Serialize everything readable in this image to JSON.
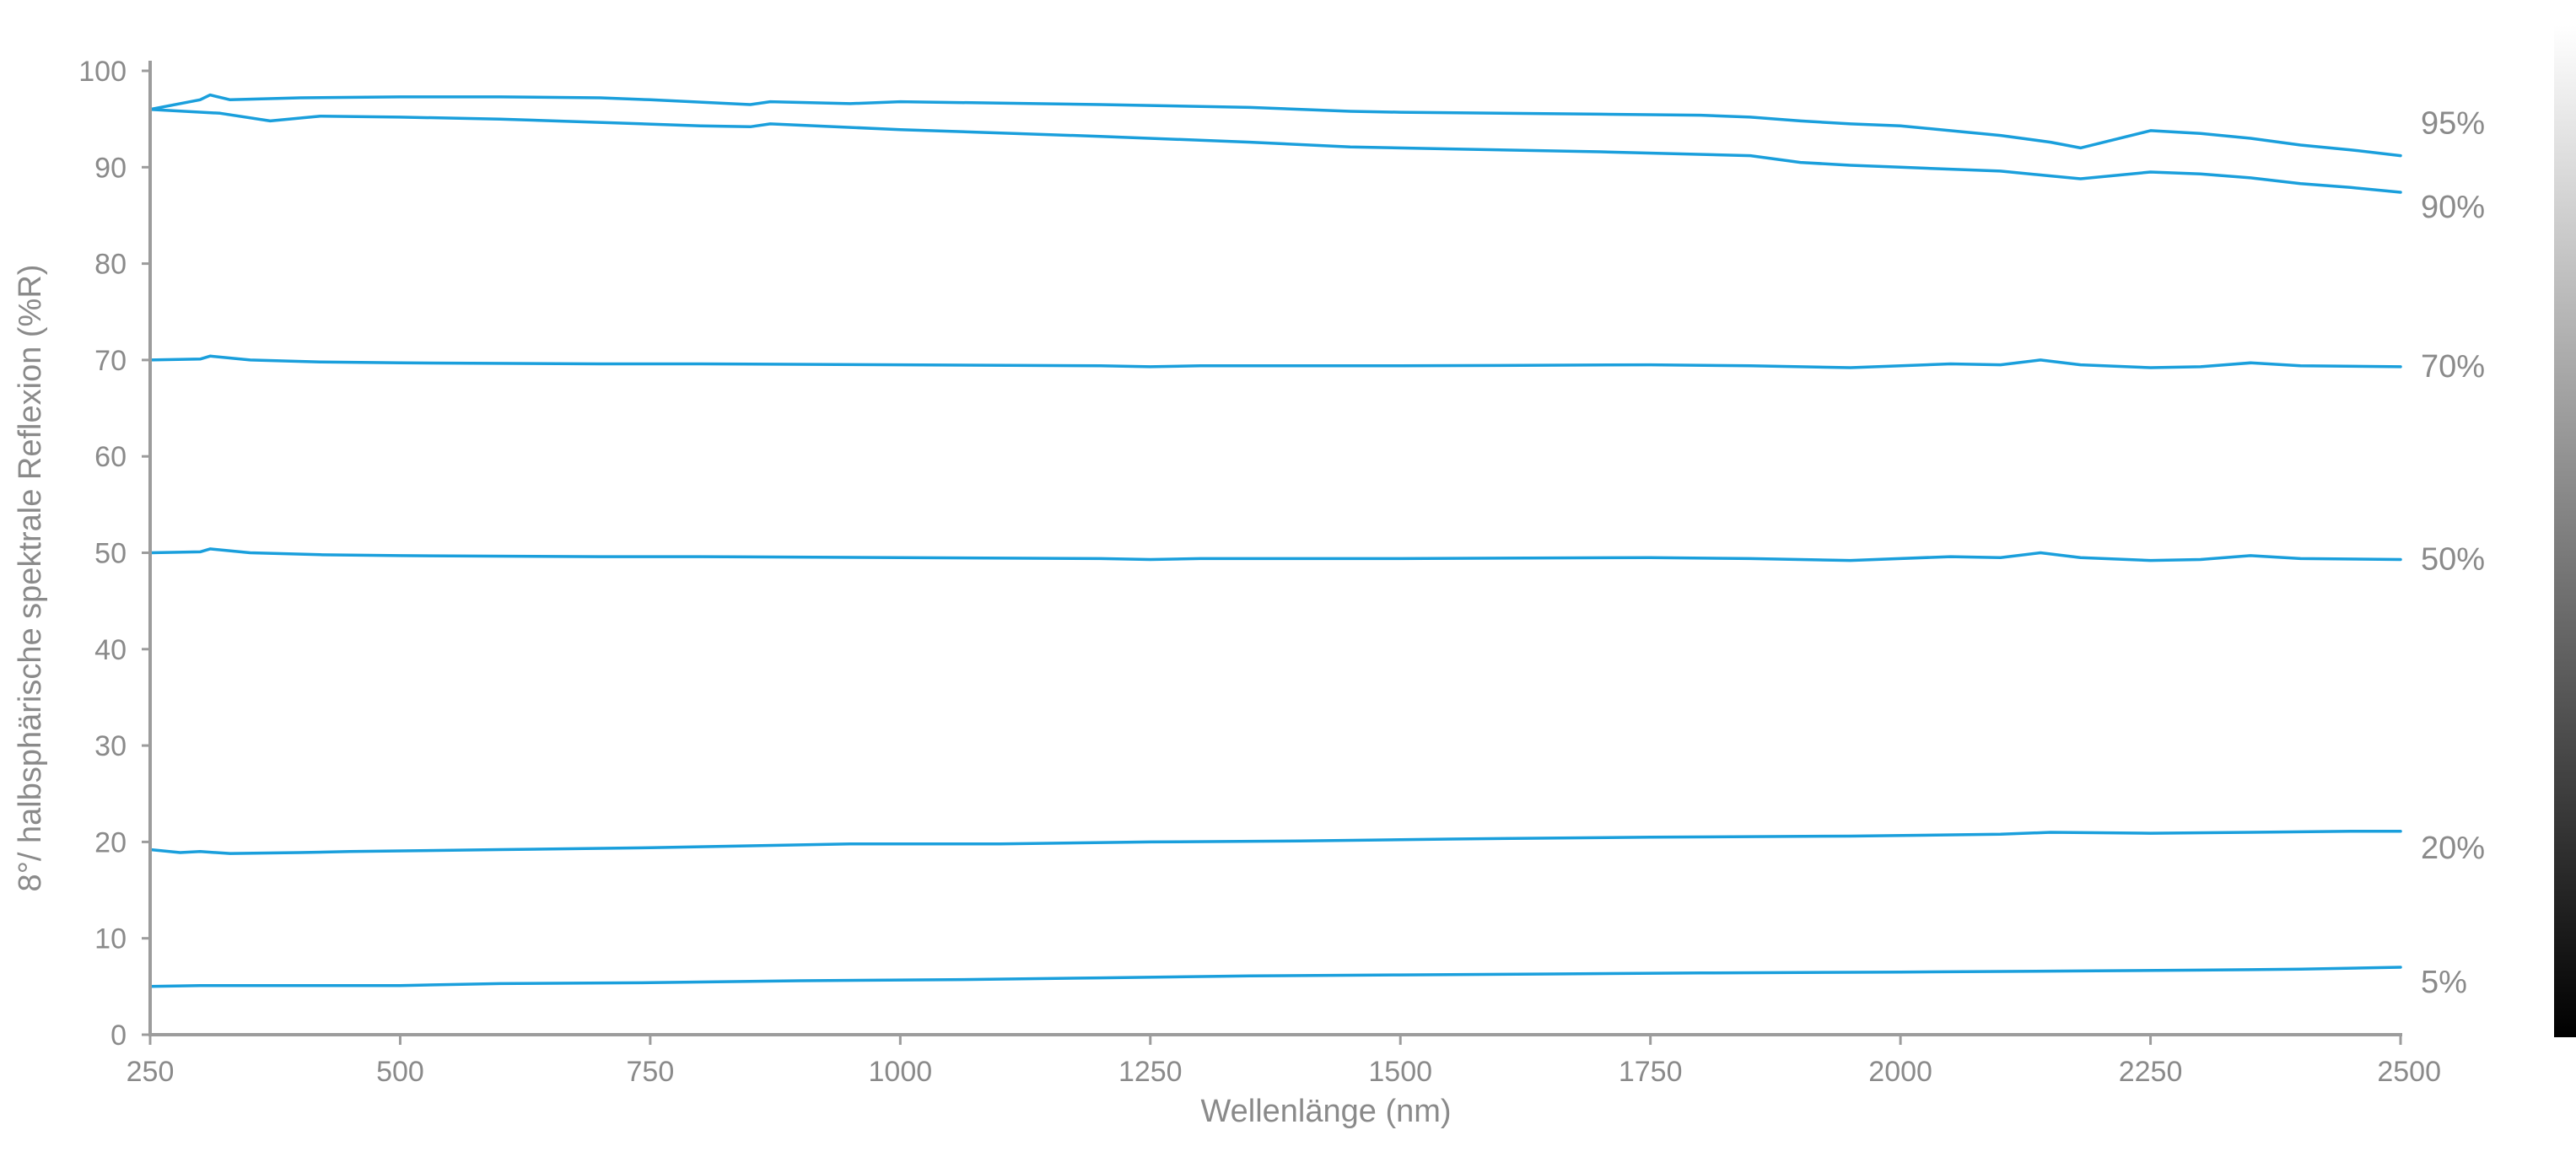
{
  "colors": {
    "series": "#1a9fdc",
    "axis": "#9c9c9c",
    "text": "#8a8a8a"
  },
  "chart_data": {
    "type": "line",
    "title": "",
    "xlabel": "Wellenlänge (nm)",
    "ylabel": "8°/ halbsphärische spektrale Reflexion (%R)",
    "xlim": [
      250,
      2500
    ],
    "ylim": [
      0,
      100
    ],
    "xticks": [
      250,
      500,
      750,
      1000,
      1250,
      1500,
      1750,
      2000,
      2250,
      2500
    ],
    "yticks": [
      0,
      10,
      20,
      30,
      40,
      50,
      60,
      70,
      80,
      90,
      100
    ],
    "grid": false,
    "legend": "series labels at right end of each line",
    "colorbar": "grayscale gradient strip at the right edge (white to black)",
    "series": [
      {
        "name": "95%",
        "x": [
          250,
          300,
          310,
          330,
          400,
          500,
          600,
          700,
          750,
          850,
          870,
          950,
          1000,
          1200,
          1350,
          1450,
          1500,
          1700,
          1800,
          1850,
          1900,
          1950,
          2000,
          2100,
          2150,
          2180,
          2250,
          2300,
          2350,
          2400,
          2450,
          2500
        ],
        "y": [
          96.0,
          97.0,
          97.5,
          97.0,
          97.2,
          97.3,
          97.3,
          97.2,
          97.0,
          96.5,
          96.8,
          96.6,
          96.8,
          96.5,
          96.2,
          95.8,
          95.7,
          95.5,
          95.4,
          95.2,
          94.8,
          94.5,
          94.3,
          93.3,
          92.6,
          92.0,
          93.8,
          93.5,
          93.0,
          92.3,
          91.8,
          91.2
        ]
      },
      {
        "name": "90%",
        "x": [
          250,
          320,
          370,
          420,
          500,
          600,
          800,
          850,
          870,
          1000,
          1200,
          1350,
          1450,
          1550,
          1700,
          1850,
          1900,
          1950,
          2000,
          2100,
          2150,
          2180,
          2250,
          2300,
          2350,
          2400,
          2450,
          2500
        ],
        "y": [
          96.0,
          95.6,
          94.8,
          95.3,
          95.2,
          95.0,
          94.3,
          94.2,
          94.5,
          93.9,
          93.2,
          92.6,
          92.1,
          91.9,
          91.6,
          91.2,
          90.5,
          90.2,
          90.0,
          89.6,
          89.1,
          88.8,
          89.5,
          89.3,
          88.9,
          88.3,
          87.9,
          87.4
        ]
      },
      {
        "name": "70%",
        "x": [
          250,
          300,
          310,
          350,
          420,
          500,
          700,
          800,
          1000,
          1200,
          1250,
          1300,
          1500,
          1750,
          1850,
          1950,
          2050,
          2100,
          2140,
          2180,
          2250,
          2300,
          2350,
          2400,
          2500
        ],
        "y": [
          70.0,
          70.1,
          70.4,
          70.0,
          69.8,
          69.7,
          69.6,
          69.6,
          69.5,
          69.4,
          69.3,
          69.4,
          69.4,
          69.5,
          69.4,
          69.2,
          69.6,
          69.5,
          70.0,
          69.5,
          69.2,
          69.3,
          69.7,
          69.4,
          69.3
        ]
      },
      {
        "name": "50%",
        "x": [
          250,
          300,
          310,
          350,
          420,
          500,
          700,
          800,
          1000,
          1200,
          1250,
          1300,
          1500,
          1750,
          1850,
          1950,
          2050,
          2100,
          2140,
          2180,
          2250,
          2300,
          2350,
          2400,
          2500
        ],
        "y": [
          50.0,
          50.1,
          50.4,
          50.0,
          49.8,
          49.7,
          49.6,
          49.6,
          49.5,
          49.4,
          49.3,
          49.4,
          49.4,
          49.5,
          49.4,
          49.2,
          49.6,
          49.5,
          50.0,
          49.5,
          49.2,
          49.3,
          49.7,
          49.4,
          49.3
        ]
      },
      {
        "name": "20%",
        "x": [
          250,
          280,
          300,
          330,
          400,
          450,
          600,
          750,
          850,
          950,
          1100,
          1250,
          1400,
          1550,
          1750,
          1950,
          2100,
          2150,
          2250,
          2350,
          2450,
          2500
        ],
        "y": [
          19.2,
          18.9,
          19.0,
          18.8,
          18.9,
          19.0,
          19.2,
          19.4,
          19.6,
          19.8,
          19.8,
          20.0,
          20.1,
          20.3,
          20.5,
          20.6,
          20.8,
          21.0,
          20.9,
          21.0,
          21.1,
          21.1
        ]
      },
      {
        "name": "5%",
        "x": [
          250,
          300,
          400,
          500,
          600,
          750,
          900,
          1050,
          1200,
          1350,
          1500,
          1650,
          1800,
          2000,
          2150,
          2300,
          2400,
          2500
        ],
        "y": [
          5.0,
          5.1,
          5.1,
          5.1,
          5.3,
          5.4,
          5.6,
          5.7,
          5.9,
          6.1,
          6.2,
          6.3,
          6.4,
          6.5,
          6.6,
          6.7,
          6.8,
          7.0
        ]
      }
    ]
  }
}
